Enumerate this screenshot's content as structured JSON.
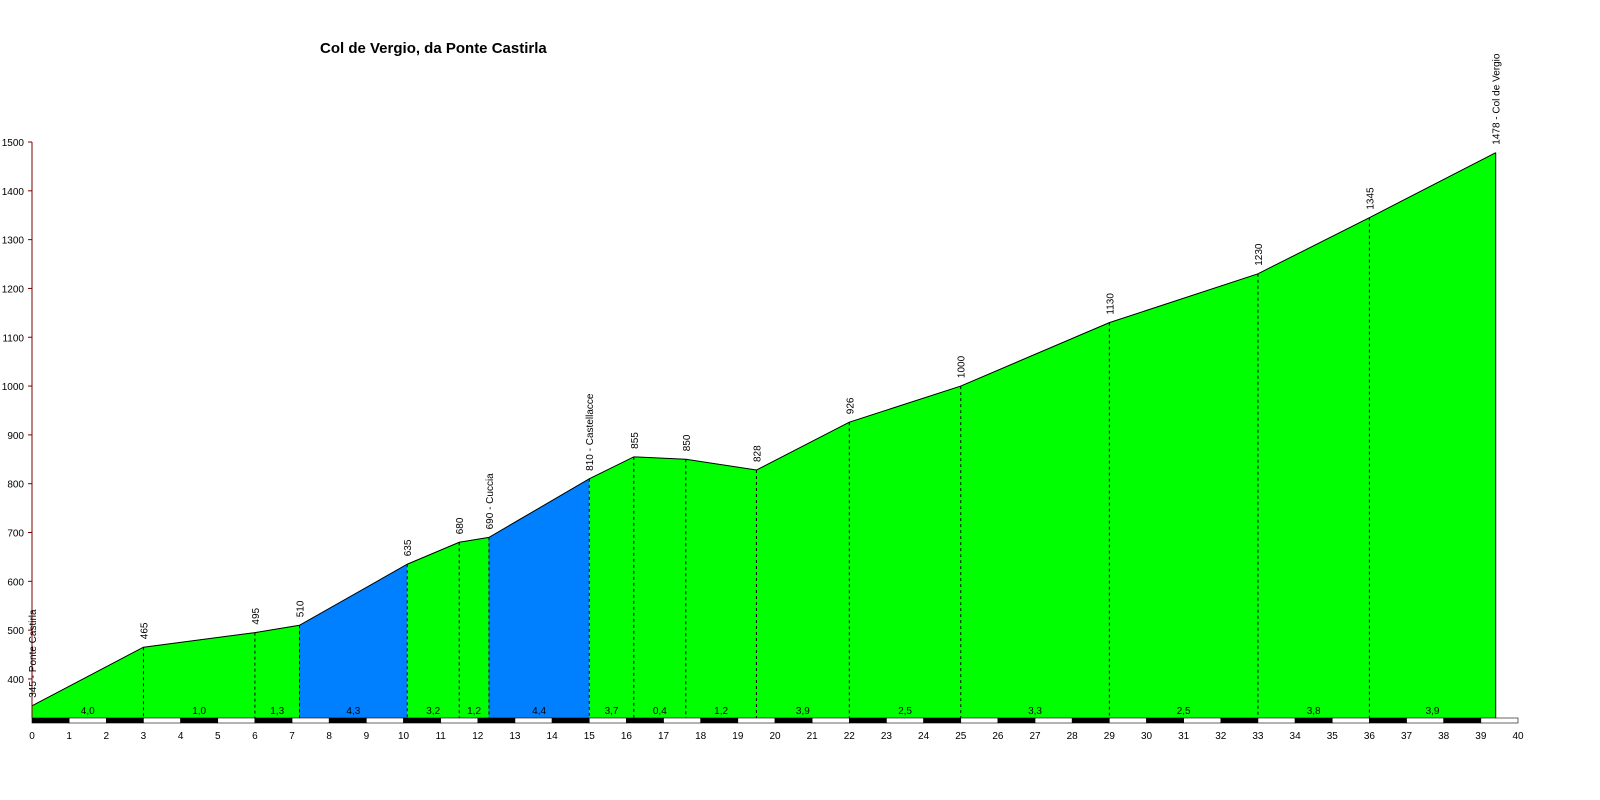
{
  "chart_data": {
    "type": "area",
    "title": "Col de Vergio, da Ponte Castirla",
    "xlabel": "",
    "ylabel": "",
    "xlim": [
      0,
      40
    ],
    "ylim": [
      320,
      1500
    ],
    "y_ticks": [
      400,
      500,
      600,
      700,
      800,
      900,
      1000,
      1100,
      1200,
      1300,
      1400,
      1500
    ],
    "x_ticks": [
      0,
      1,
      2,
      3,
      4,
      5,
      6,
      7,
      8,
      9,
      10,
      11,
      12,
      13,
      14,
      15,
      16,
      17,
      18,
      19,
      20,
      21,
      22,
      23,
      24,
      25,
      26,
      27,
      28,
      29,
      30,
      31,
      32,
      33,
      34,
      35,
      36,
      37,
      38,
      39,
      40
    ],
    "grid": false,
    "colors": {
      "gentle": "#00ff00",
      "steep": "#0080ff",
      "axis": "#7a0000"
    },
    "points": [
      {
        "x": 0,
        "y": 345,
        "label": "345 - Ponte Castirla"
      },
      {
        "x": 3.0,
        "y": 465,
        "label": "465"
      },
      {
        "x": 6.0,
        "y": 495,
        "label": "495"
      },
      {
        "x": 7.2,
        "y": 510,
        "label": "510"
      },
      {
        "x": 10.1,
        "y": 635,
        "label": "635"
      },
      {
        "x": 11.5,
        "y": 680,
        "label": "680"
      },
      {
        "x": 12.3,
        "y": 690,
        "label": "690 - Cuccia"
      },
      {
        "x": 15.0,
        "y": 810,
        "label": "810 - Castellacce"
      },
      {
        "x": 16.2,
        "y": 855,
        "label": "855"
      },
      {
        "x": 17.6,
        "y": 850,
        "label": "850"
      },
      {
        "x": 19.5,
        "y": 828,
        "label": "828"
      },
      {
        "x": 22.0,
        "y": 926,
        "label": "926"
      },
      {
        "x": 25.0,
        "y": 1000,
        "label": "1000"
      },
      {
        "x": 29.0,
        "y": 1130,
        "label": "1130"
      },
      {
        "x": 33.0,
        "y": 1230,
        "label": "1230"
      },
      {
        "x": 36.0,
        "y": 1345,
        "label": "1345"
      },
      {
        "x": 39.4,
        "y": 1478,
        "label": "1478 - Col de Vergio"
      }
    ],
    "segments": [
      {
        "gradient": "4,0",
        "color": "gentle"
      },
      {
        "gradient": "1,0",
        "color": "gentle"
      },
      {
        "gradient": "1,3",
        "color": "gentle"
      },
      {
        "gradient": "4,3",
        "color": "steep"
      },
      {
        "gradient": "3,2",
        "color": "gentle"
      },
      {
        "gradient": "1,2",
        "color": "gentle"
      },
      {
        "gradient": "4,4",
        "color": "steep"
      },
      {
        "gradient": "3,7",
        "color": "gentle"
      },
      {
        "gradient": "0,4",
        "color": "gentle"
      },
      {
        "gradient": "1,2",
        "color": "gentle"
      },
      {
        "gradient": "3,9",
        "color": "gentle"
      },
      {
        "gradient": "2,5",
        "color": "gentle"
      },
      {
        "gradient": "3,3",
        "color": "gentle"
      },
      {
        "gradient": "2,5",
        "color": "gentle"
      },
      {
        "gradient": "3,8",
        "color": "gentle"
      },
      {
        "gradient": "3,9",
        "color": "gentle"
      }
    ]
  }
}
